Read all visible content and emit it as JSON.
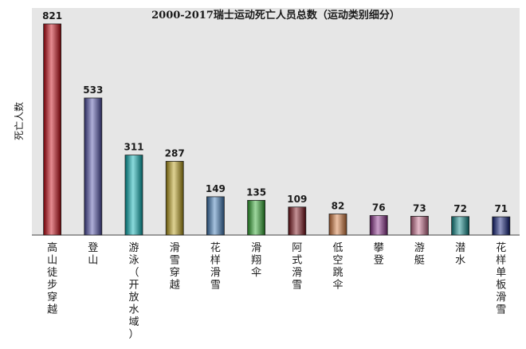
{
  "chart_data": {
    "type": "bar",
    "title": "2000-2017瑞士运动死亡人员总数（运动类别细分）",
    "xlabel": "",
    "ylabel": "死亡人数",
    "ylim": [
      0,
      821
    ],
    "grid": false,
    "categories": [
      "高山徒步穿越",
      "登山",
      "游泳（开放水域）",
      "滑雪穿越",
      "花样滑雪",
      "滑翔伞",
      "阿式滑雪",
      "低空跳伞",
      "攀登",
      "游艇",
      "潜水",
      "花样单板滑雪"
    ],
    "values": [
      821,
      533,
      311,
      287,
      149,
      135,
      109,
      82,
      76,
      73,
      72,
      71
    ],
    "colors": [
      "#c8000a",
      "#4a4aa8",
      "#00b0b4",
      "#b89a10",
      "#3a78b8",
      "#2aa82a",
      "#7a0a14",
      "#d87838",
      "#8a2a8a",
      "#c86a8a",
      "#0a8a8a",
      "#0a1a7a"
    ]
  }
}
